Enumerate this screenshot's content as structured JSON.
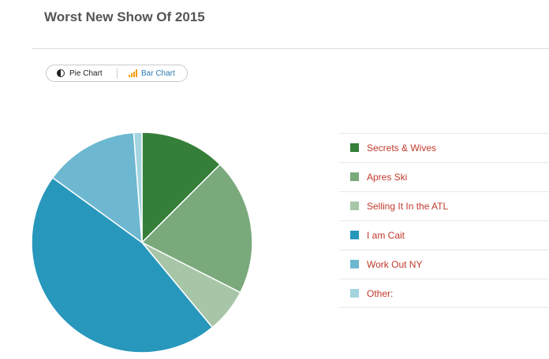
{
  "title": "Worst New Show Of 2015",
  "toggle": {
    "pie_label": "Pie Chart",
    "bar_label": "Bar Chart",
    "pie_icon": "pie-chart-icon",
    "bar_icon": "bar-chart-icon",
    "bar_icon_color": "#f39c12"
  },
  "chart_data": {
    "type": "pie",
    "title": "Worst New Show Of 2015",
    "legend_position": "right",
    "categories": [
      "Secrets & Wives",
      "Apres Ski",
      "Selling It In the ATL",
      "I am Cait",
      "Work Out NY",
      "Other:"
    ],
    "values": [
      12.5,
      20,
      6.5,
      46,
      13.8,
      1.2
    ],
    "colors": [
      "#357f3a",
      "#7aa97c",
      "#a7c6a8",
      "#2797bb",
      "#6db8d0",
      "#a3d4e0"
    ]
  }
}
